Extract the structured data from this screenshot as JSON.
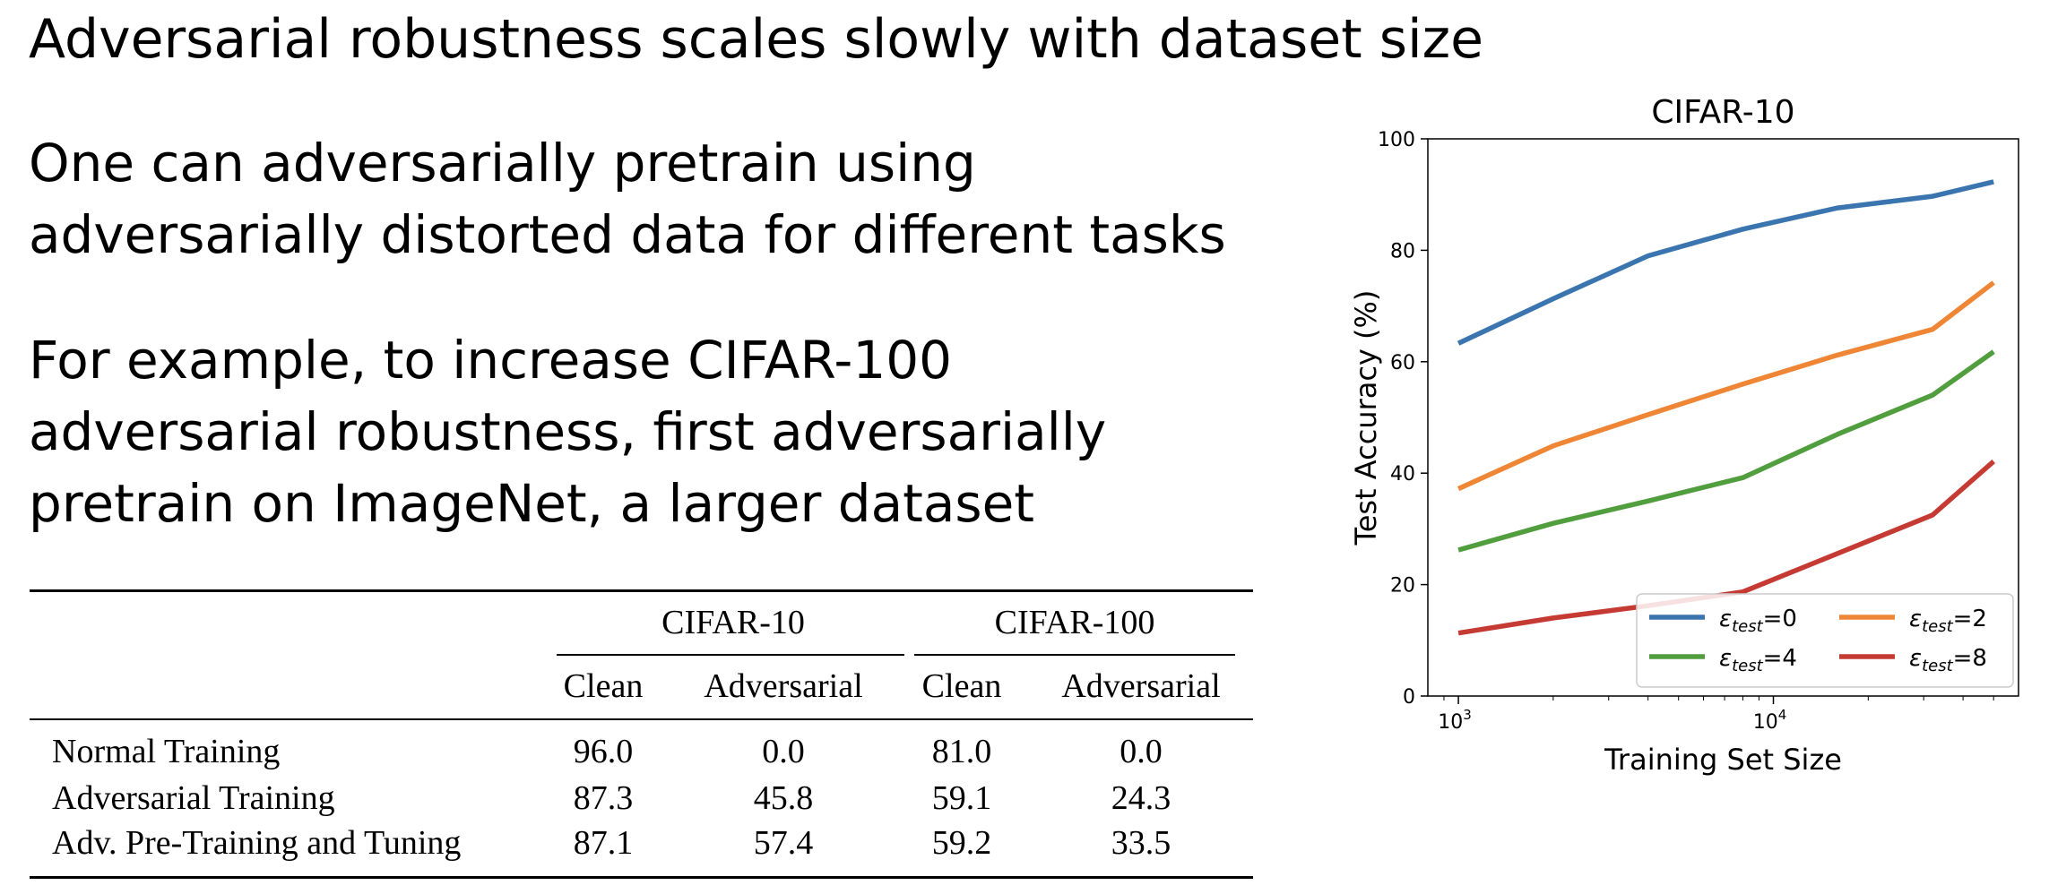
{
  "slide": {
    "title": "Adversarial robustness scales slowly with dataset size",
    "paragraphs": [
      [
        "One can adversarially pretrain using",
        "adversarially distorted data for different tasks"
      ],
      [
        "For example, to increase CIFAR-100",
        "adversarial robustness, first adversarially",
        "pretrain on ImageNet, a larger dataset"
      ]
    ]
  },
  "table": {
    "group_headers": [
      "CIFAR-10",
      "CIFAR-100"
    ],
    "sub_headers": [
      "Clean",
      "Adversarial",
      "Clean",
      "Adversarial"
    ],
    "rows": [
      {
        "label": "Normal Training",
        "values": [
          "96.0",
          "0.0",
          "81.0",
          "0.0"
        ]
      },
      {
        "label": "Adversarial Training",
        "values": [
          "87.3",
          "45.8",
          "59.1",
          "24.3"
        ]
      },
      {
        "label": "Adv. Pre-Training and Tuning",
        "values": [
          "87.1",
          "57.4",
          "59.2",
          "33.5"
        ]
      }
    ]
  },
  "chart_data": {
    "type": "line",
    "title": "CIFAR-10",
    "xlabel": "Training Set Size",
    "ylabel": "Test Accuracy (%)",
    "xscale": "log",
    "xlim": [
      800,
      60000
    ],
    "ylim": [
      0,
      100
    ],
    "x": [
      1000,
      2000,
      4000,
      8000,
      16000,
      32000,
      50000
    ],
    "yticks": [
      "0",
      "20",
      "40",
      "60",
      "80",
      "100"
    ],
    "xtick_labels": [
      {
        "value": 1000,
        "base": "10",
        "exp": "3"
      },
      {
        "value": 10000,
        "base": "10",
        "exp": "4"
      }
    ],
    "grid": false,
    "legend_position": "lower right",
    "series": [
      {
        "name": "ε_test=0",
        "sub": "test",
        "num": "0",
        "color": "#3b75af",
        "values": [
          63.3,
          71.3,
          79.0,
          83.8,
          87.6,
          89.7,
          92.3
        ]
      },
      {
        "name": "ε_test=2",
        "sub": "test",
        "num": "2",
        "color": "#ef8636",
        "values": [
          37.2,
          44.9,
          50.5,
          56.0,
          61.2,
          65.8,
          74.2
        ]
      },
      {
        "name": "ε_test=4",
        "sub": "test",
        "num": "4",
        "color": "#519e3e",
        "values": [
          26.2,
          31.0,
          35.0,
          39.2,
          47.0,
          54.0,
          61.8
        ]
      },
      {
        "name": "ε_test=8",
        "sub": "test",
        "num": "8",
        "color": "#c53a32",
        "values": [
          11.3,
          14.0,
          16.2,
          18.7,
          25.6,
          32.5,
          42.1
        ]
      }
    ]
  }
}
